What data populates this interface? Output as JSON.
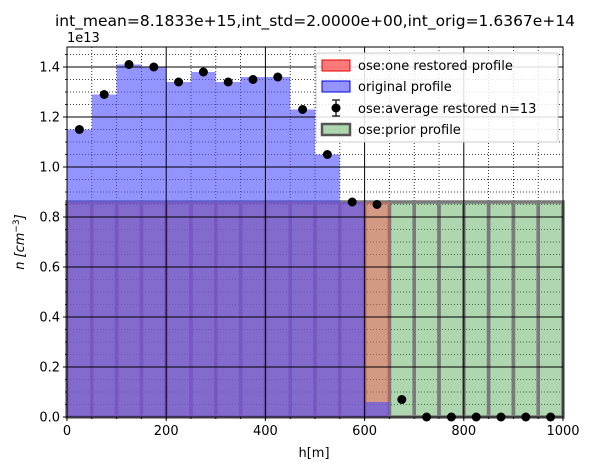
{
  "chart_data": {
    "type": "bar",
    "title": "int_mean=8.1833e+15,int_std=2.0000e+00,int_orig=1.6367e+14",
    "xlabel": "h[m]",
    "ylabel_main": "n",
    "ylabel_unit": "[cm",
    "ylabel_exp": "−3",
    "ylabel_close": "]",
    "y_offset_label": "1e13",
    "xlim": [
      0,
      1000
    ],
    "ylim": [
      0,
      1.48
    ],
    "y_scale": 10000000000000.0,
    "xticks": [
      0,
      200,
      400,
      600,
      800,
      1000
    ],
    "xtick_labels": [
      "0",
      "200",
      "400",
      "600",
      "800",
      "1000"
    ],
    "yticks": [
      0,
      0.2,
      0.4,
      0.6,
      0.8,
      1.0,
      1.2,
      1.4
    ],
    "ytick_labels": [
      "0.0",
      "0.2",
      "0.4",
      "0.6",
      "0.8",
      "1.0",
      "1.2",
      "1.4"
    ],
    "grid": true,
    "legend_position": "top-right",
    "bin_edges": [
      0,
      50,
      100,
      150,
      200,
      250,
      300,
      350,
      400,
      450,
      500,
      550,
      600,
      650,
      700,
      750,
      800,
      850,
      900,
      950,
      1000
    ],
    "series": [
      {
        "name": "ose:one restored profile",
        "kind": "bar",
        "color": "#ff4d4d",
        "values": [
          0.86,
          0.86,
          0.86,
          0.86,
          0.86,
          0.86,
          0.86,
          0.86,
          0.86,
          0.86,
          0.86,
          0.86,
          0.86,
          0,
          0,
          0,
          0,
          0,
          0,
          0
        ]
      },
      {
        "name": "original profile",
        "kind": "bar",
        "color": "#4d4dff",
        "values": [
          1.15,
          1.29,
          1.41,
          1.4,
          1.34,
          1.38,
          1.34,
          1.36,
          1.36,
          1.23,
          1.05,
          0.86,
          0.06,
          0,
          0,
          0,
          0,
          0,
          0,
          0
        ]
      },
      {
        "name": "ose:average restored n=13",
        "kind": "errorbar",
        "color": "#000000",
        "x": [
          25,
          75,
          125,
          175,
          225,
          275,
          325,
          375,
          425,
          475,
          525,
          575,
          625,
          675,
          725,
          775,
          825,
          875,
          925,
          975
        ],
        "values": [
          1.15,
          1.29,
          1.41,
          1.4,
          1.34,
          1.38,
          1.34,
          1.35,
          1.36,
          1.23,
          1.05,
          0.86,
          0.85,
          0.07,
          0.0,
          0.0,
          0.0,
          0.0,
          0.0,
          0.0
        ]
      },
      {
        "name": "ose:prior profile",
        "kind": "bar",
        "color": "#4da64d",
        "values": [
          0.86,
          0.86,
          0.86,
          0.86,
          0.86,
          0.86,
          0.86,
          0.86,
          0.86,
          0.86,
          0.86,
          0.86,
          0.86,
          0.86,
          0.86,
          0.86,
          0.86,
          0.86,
          0.86,
          0.86
        ]
      }
    ]
  }
}
